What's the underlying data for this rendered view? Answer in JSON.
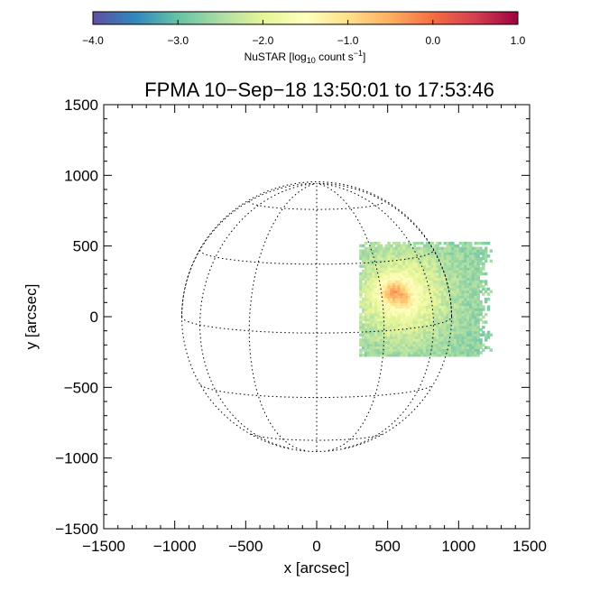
{
  "chart_data": {
    "type": "heatmap",
    "title": "FPMA 10−Sep−18 13:50:01 to 17:53:46",
    "xlabel": "x [arcsec]",
    "ylabel": "y [arcsec]",
    "xlim": [
      -1500,
      1500
    ],
    "ylim": [
      -1500,
      1500
    ],
    "x_ticks": [
      -1500,
      -1000,
      -500,
      0,
      500,
      1000,
      1500
    ],
    "y_ticks": [
      -1500,
      -1000,
      -500,
      0,
      500,
      1000,
      1500
    ],
    "x_tick_labels": [
      "−1500",
      "−1000",
      "−500",
      "0",
      "500",
      "1000",
      "1500"
    ],
    "y_tick_labels": [
      "−1500",
      "−1000",
      "−500",
      "0",
      "500",
      "1000",
      "1500"
    ],
    "grid": false,
    "solar_disk": {
      "radius_arcsec": 950,
      "grid_spacing_deg": 30,
      "b0_deg": 7,
      "line_style": "dotted"
    },
    "image_region": {
      "x_range": [
        300,
        1230
      ],
      "y_range": [
        -280,
        520
      ],
      "background_log10": -2.7,
      "peak_log10": -0.4,
      "peak_center": [
        540,
        170
      ],
      "secondary_peak": [
        620,
        90
      ],
      "description_edges": "noisy, speckled"
    },
    "colorbar": {
      "label_prefix": "NuSTAR [log",
      "label_sub": "10",
      "label_mid": " count s",
      "label_sup": "−1",
      "label_suffix": "]",
      "range": [
        -4.0,
        1.0
      ],
      "ticks": [
        -4.0,
        -3.0,
        -2.0,
        -1.0,
        0.0,
        1.0
      ],
      "tick_labels": [
        "−4.0",
        "−3.0",
        "−2.0",
        "−1.0",
        "0.0",
        "1.0"
      ],
      "colormap": "spectral-reversed",
      "position": "top"
    }
  }
}
